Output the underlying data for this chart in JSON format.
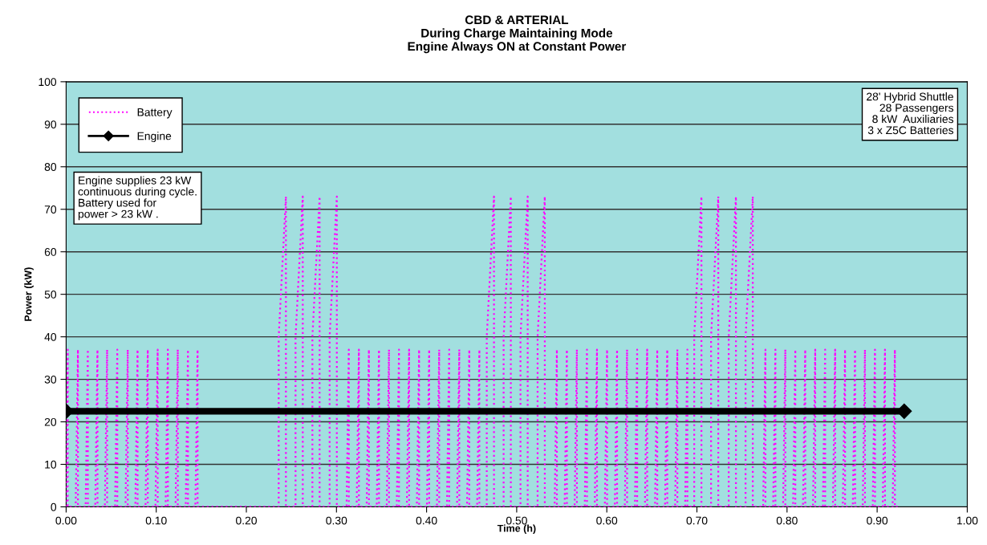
{
  "chart_data": {
    "type": "line",
    "title": "CBD & ARTERIAL\nDuring Charge Maintaining Mode\nEngine Always ON at Constant Power",
    "xlabel": "Time (h)",
    "ylabel": "Power (kW)",
    "xlim": [
      0,
      1
    ],
    "ylim": [
      0,
      100
    ],
    "xticks": [
      {
        "value": 0,
        "label": "0.00"
      },
      {
        "value": 0.1,
        "label": "0.10"
      },
      {
        "value": 0.2,
        "label": "0.20"
      },
      {
        "value": 0.3,
        "label": "0.30"
      },
      {
        "value": 0.4,
        "label": "0.40"
      },
      {
        "value": 0.5,
        "label": "0.50"
      },
      {
        "value": 0.6,
        "label": "0.60"
      },
      {
        "value": 0.7,
        "label": "0.70"
      },
      {
        "value": 0.8,
        "label": "0.80"
      },
      {
        "value": 0.9,
        "label": "0.90"
      },
      {
        "value": 1,
        "label": "1.00"
      }
    ],
    "yticks": [
      0,
      10,
      20,
      30,
      40,
      50,
      60,
      70,
      80,
      90,
      100
    ],
    "grid": "y",
    "legend": "top left",
    "annotations": [
      "Engine supplies 23 kW\ncontinuous during cycle.\nBattery used for\npower > 23 kW .",
      "28' Hybrid Shuttle\n28 Passengers\n8 kW  Auxiliaries\n3 x Z5C Batteries"
    ],
    "series": [
      {
        "name": "Battery",
        "color": "#ff00ff",
        "line_style": "dotted",
        "marker": "none",
        "x": [
          0.0,
          0.0018,
          0.0018,
          0.0106,
          0.0131,
          0.0131,
          0.0216,
          0.0241,
          0.0241,
          0.0323,
          0.0348,
          0.0348,
          0.043,
          0.0455,
          0.0455,
          0.0543,
          0.0568,
          0.0568,
          0.0659,
          0.0684,
          0.0684,
          0.0768,
          0.0793,
          0.0793,
          0.0881,
          0.0906,
          0.0906,
          0.0991,
          0.1016,
          0.1016,
          0.1104,
          0.1129,
          0.1129,
          0.1214,
          0.1239,
          0.1239,
          0.1327,
          0.1352,
          0.1352,
          0.1434,
          0.1459,
          0.1459,
          0.2359,
          0.2359,
          0.2439,
          0.2439,
          0.2546,
          0.2546,
          0.2626,
          0.2626,
          0.2733,
          0.2733,
          0.2813,
          0.2813,
          0.2924,
          0.2924,
          0.3004,
          0.3004,
          0.3112,
          0.3137,
          0.3137,
          0.3224,
          0.3249,
          0.3249,
          0.3335,
          0.336,
          0.336,
          0.3447,
          0.3472,
          0.3472,
          0.3558,
          0.3583,
          0.3583,
          0.3669,
          0.3694,
          0.3694,
          0.3781,
          0.3806,
          0.3806,
          0.3892,
          0.3917,
          0.3917,
          0.4004,
          0.4029,
          0.4029,
          0.4115,
          0.414,
          0.414,
          0.4226,
          0.4251,
          0.4251,
          0.4338,
          0.4363,
          0.4363,
          0.4449,
          0.4474,
          0.4474,
          0.4561,
          0.4586,
          0.4586,
          0.4668,
          0.4668,
          0.4748,
          0.4748,
          0.4855,
          0.4855,
          0.4935,
          0.4935,
          0.5042,
          0.5042,
          0.5122,
          0.5122,
          0.5232,
          0.5232,
          0.5312,
          0.5312,
          0.5421,
          0.5446,
          0.5446,
          0.5532,
          0.5557,
          0.5557,
          0.5643,
          0.5668,
          0.5668,
          0.5755,
          0.578,
          0.578,
          0.5866,
          0.5891,
          0.5891,
          0.5978,
          0.6003,
          0.6003,
          0.6089,
          0.6114,
          0.6114,
          0.62,
          0.6225,
          0.6225,
          0.6312,
          0.6337,
          0.6337,
          0.6423,
          0.6448,
          0.6448,
          0.6535,
          0.656,
          0.656,
          0.6646,
          0.6671,
          0.6671,
          0.6758,
          0.6783,
          0.6783,
          0.6869,
          0.6894,
          0.6894,
          0.697,
          0.697,
          0.705,
          0.705,
          0.7157,
          0.7157,
          0.7237,
          0.7237,
          0.7353,
          0.7353,
          0.7433,
          0.7433,
          0.754,
          0.754,
          0.762,
          0.762,
          0.7735,
          0.776,
          0.776,
          0.7846,
          0.7871,
          0.7871,
          0.7956,
          0.7981,
          0.7981,
          0.8067,
          0.8092,
          0.8092,
          0.8177,
          0.8202,
          0.8202,
          0.8288,
          0.8313,
          0.8313,
          0.8398,
          0.8423,
          0.8423,
          0.8509,
          0.8534,
          0.8534,
          0.8619,
          0.8644,
          0.8644,
          0.873,
          0.8755,
          0.8755,
          0.884,
          0.8865,
          0.8865,
          0.8951,
          0.8976,
          0.8976,
          0.9062,
          0.9087,
          0.9087,
          0.9172,
          0.9197,
          0.9197,
          0.925
        ],
        "values": [
          0,
          37,
          0,
          0,
          37,
          0,
          0,
          37,
          0,
          0,
          37,
          0,
          0,
          37,
          0,
          0,
          37,
          0,
          0,
          37,
          0,
          0,
          37,
          0,
          0,
          37,
          0,
          0,
          37,
          0,
          0,
          37,
          0,
          0,
          37,
          0,
          0,
          37,
          0,
          0,
          37,
          0,
          0,
          40,
          73,
          0,
          0,
          40,
          73,
          0,
          0,
          40,
          73,
          0,
          0,
          40,
          73,
          0,
          0,
          37,
          0,
          0,
          37,
          0,
          0,
          37,
          0,
          0,
          37,
          0,
          0,
          37,
          0,
          0,
          37,
          0,
          0,
          37,
          0,
          0,
          37,
          0,
          0,
          37,
          0,
          0,
          37,
          0,
          0,
          37,
          0,
          0,
          37,
          0,
          0,
          37,
          0,
          0,
          37,
          0,
          0,
          40,
          73,
          0,
          0,
          40,
          73,
          0,
          0,
          40,
          73,
          0,
          0,
          40,
          73,
          0,
          0,
          37,
          0,
          0,
          37,
          0,
          0,
          37,
          0,
          0,
          37,
          0,
          0,
          37,
          0,
          0,
          37,
          0,
          0,
          37,
          0,
          0,
          37,
          0,
          0,
          37,
          0,
          0,
          37,
          0,
          0,
          37,
          0,
          0,
          37,
          0,
          0,
          37,
          0,
          0,
          37,
          0,
          0,
          40,
          73,
          0,
          0,
          40,
          73,
          0,
          0,
          40,
          73,
          0,
          0,
          40,
          73,
          0,
          0,
          37,
          0,
          0,
          37,
          0,
          0,
          37,
          0,
          0,
          37,
          0,
          0,
          37,
          0,
          0,
          37,
          0,
          0,
          37,
          0,
          0,
          37,
          0,
          0,
          37,
          0,
          0,
          37,
          0,
          0,
          37,
          0,
          0,
          37,
          0,
          0,
          37,
          0,
          0,
          37,
          0,
          0
        ]
      },
      {
        "name": "Engine",
        "color": "#000000",
        "line_style": "solid",
        "marker": "diamond",
        "x": [
          0,
          0.93
        ],
        "values": [
          22.5,
          22.5
        ]
      }
    ]
  }
}
